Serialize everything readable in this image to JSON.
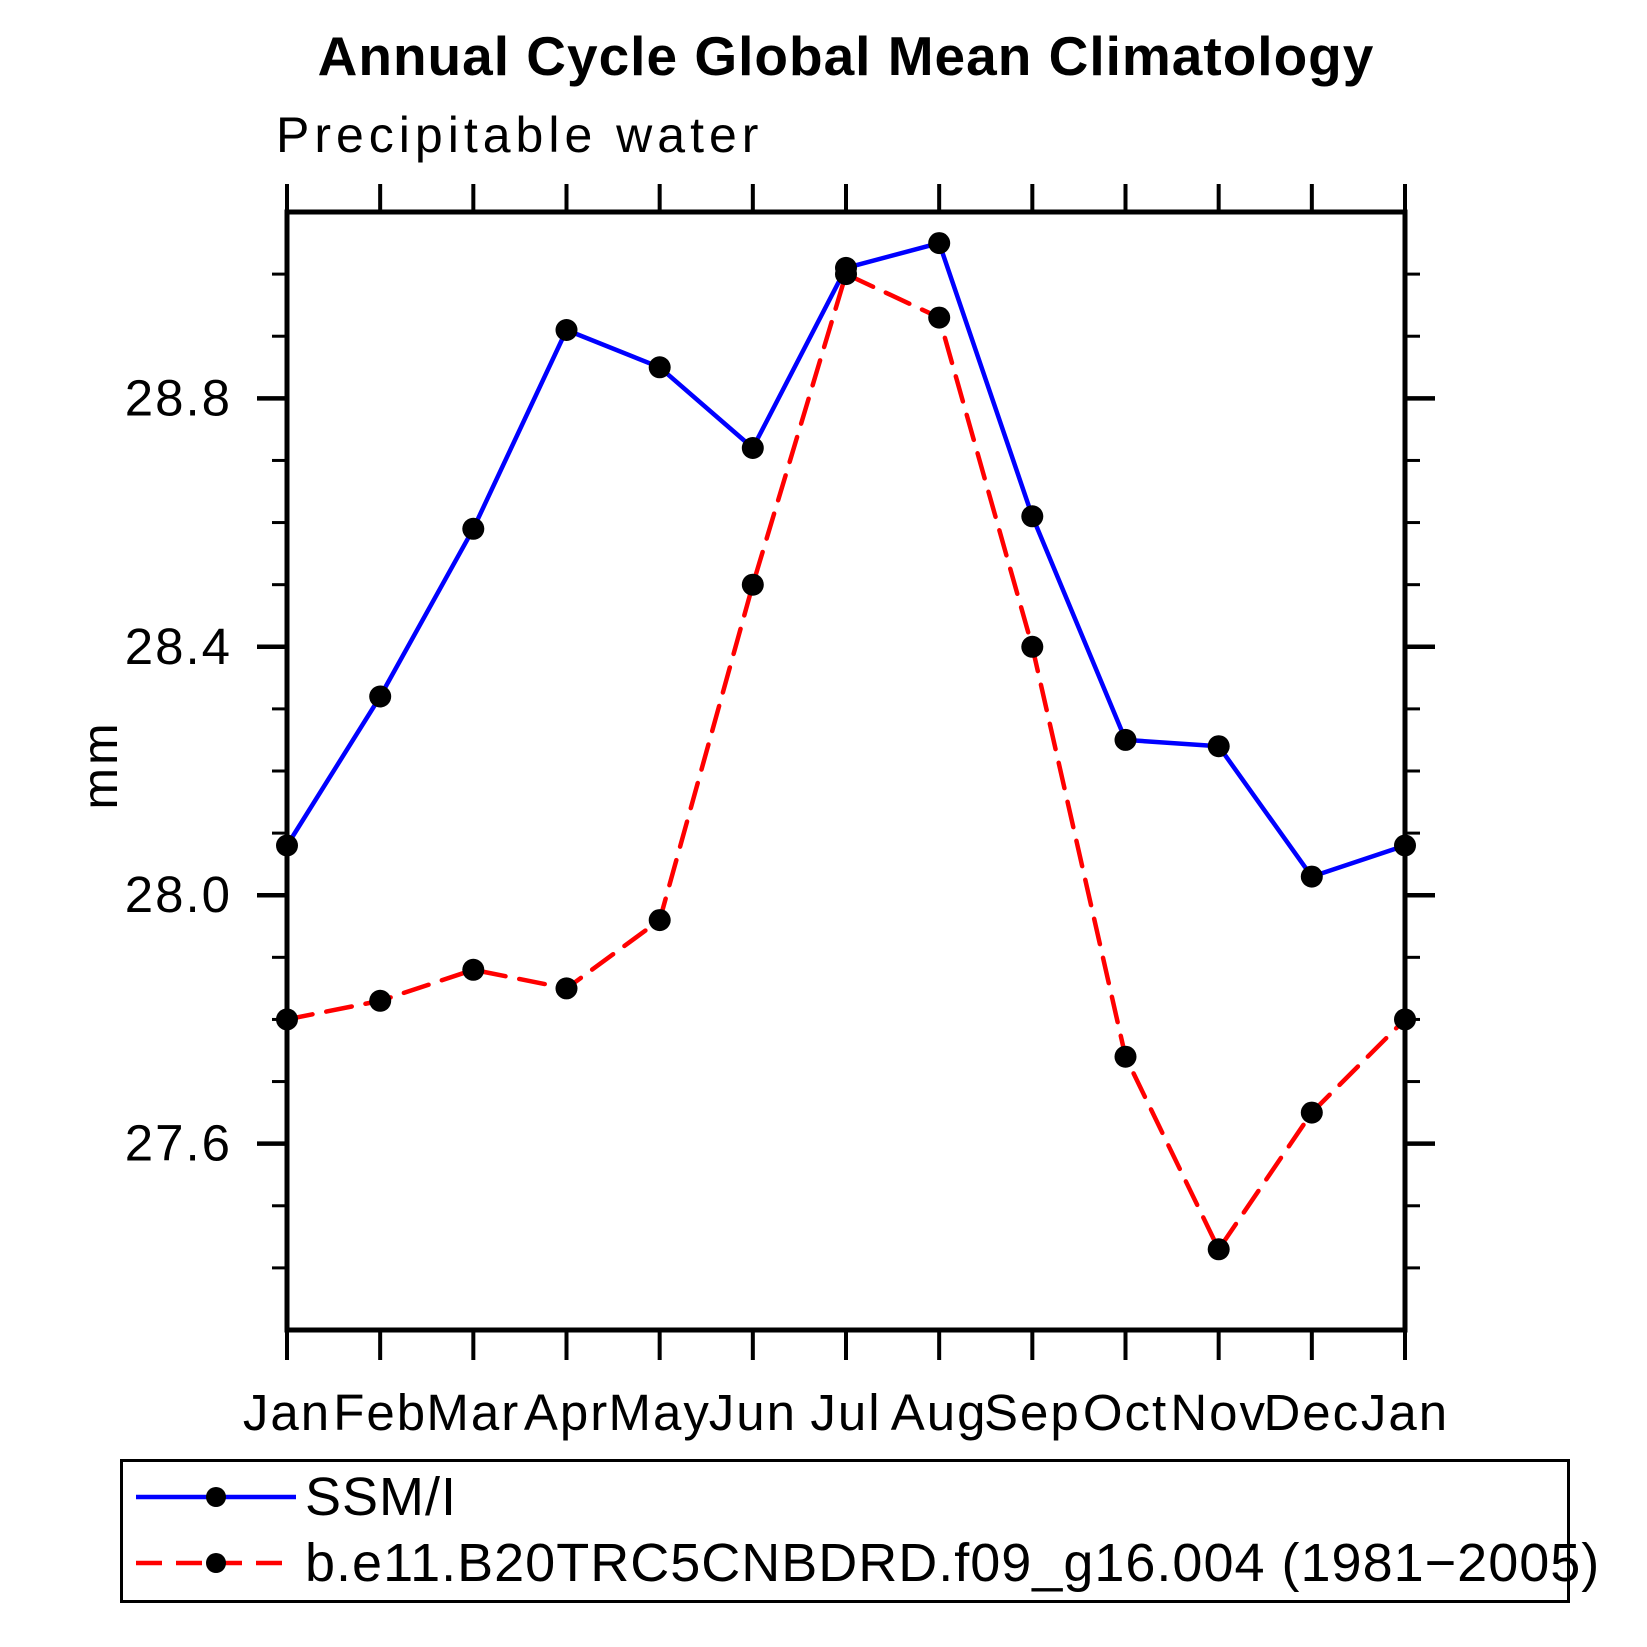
{
  "chart_data": {
    "type": "line",
    "title": "Annual Cycle Global Mean Climatology",
    "subtitle": "Precipitable water",
    "ylabel": "mm",
    "xlabel": "",
    "categories": [
      "Jan",
      "Feb",
      "Mar",
      "Apr",
      "May",
      "Jun",
      "Jul",
      "Aug",
      "Sep",
      "Oct",
      "Nov",
      "Dec",
      "Jan"
    ],
    "series": [
      {
        "name": "SSM/I",
        "color": "#0000ff",
        "line_style": "solid",
        "marker": "circle",
        "marker_color": "#000000",
        "values": [
          28.08,
          28.32,
          28.59,
          28.91,
          28.85,
          28.72,
          29.01,
          29.05,
          28.61,
          28.25,
          28.24,
          28.03,
          28.08
        ]
      },
      {
        "name": "b.e11.B20TRC5CNBDRD.f09_g16.004 (1981−2005)",
        "color": "#ff0000",
        "line_style": "dashed",
        "marker": "circle",
        "marker_color": "#000000",
        "values": [
          27.8,
          27.83,
          27.88,
          27.85,
          27.96,
          28.5,
          29.0,
          28.93,
          28.4,
          27.74,
          27.43,
          27.65,
          27.8
        ]
      }
    ],
    "ylim": [
      27.3,
      29.1
    ],
    "yticks_major": [
      27.6,
      28.0,
      28.4,
      28.8
    ],
    "ytick_minor_step": 0.1,
    "grid": false,
    "legend_position": "bottom"
  }
}
